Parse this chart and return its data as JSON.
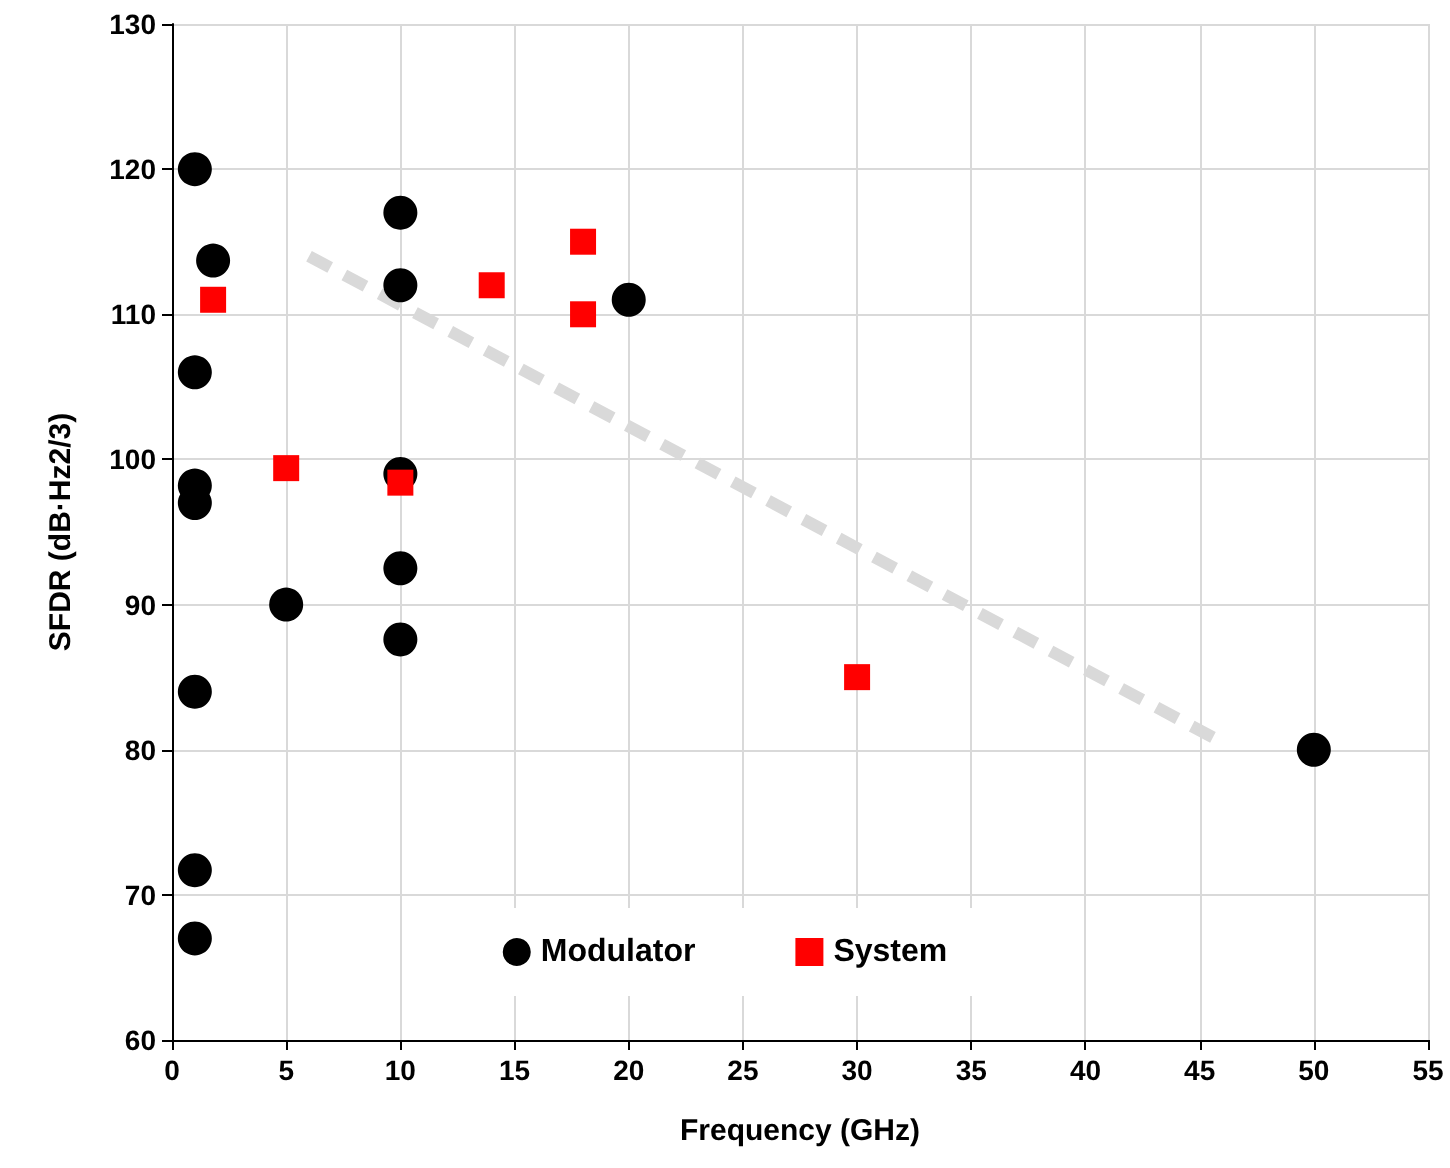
{
  "chart_data": {
    "type": "scatter",
    "xlabel": "Frequency (GHz)",
    "ylabel": "SFDR (dB·Hz2/3)",
    "xlim": [
      0,
      55
    ],
    "xticks": [
      0,
      5,
      10,
      15,
      20,
      25,
      30,
      35,
      40,
      45,
      50,
      55
    ],
    "ylim": [
      60,
      130
    ],
    "yticks": [
      60,
      70,
      80,
      90,
      100,
      110,
      120,
      130
    ],
    "grid": true,
    "legend": "bottom",
    "series": [
      {
        "name": "Modulator",
        "color": "#000000",
        "marker": "circle",
        "x": [
          1,
          1.8,
          1,
          1,
          1,
          1,
          1,
          1,
          5,
          10,
          10,
          10,
          10,
          10,
          20,
          50
        ],
        "values": [
          120,
          113.7,
          106,
          98.2,
          97,
          84,
          71.7,
          67,
          90,
          117,
          112,
          99,
          92.5,
          87.6,
          111,
          80
        ]
      },
      {
        "name": "System",
        "color": "#ff0000",
        "marker": "square",
        "x": [
          1.8,
          5,
          10,
          14,
          18,
          18,
          30
        ],
        "values": [
          111,
          99.4,
          98.4,
          112,
          115,
          110,
          85
        ]
      },
      {
        "type": "line",
        "color": "#d9d9d9",
        "line_style": "dashed",
        "marker": "none",
        "x": [
          6,
          46
        ],
        "values": [
          114,
          80.5
        ]
      }
    ]
  }
}
